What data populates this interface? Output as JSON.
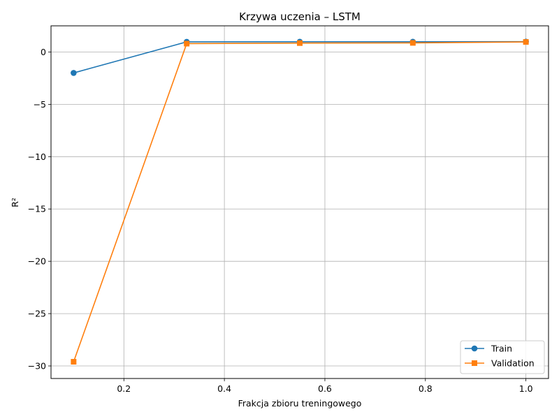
{
  "chart_data": {
    "type": "line",
    "title": "Krzywa uczenia – LSTM",
    "xlabel": "Frakcja zbioru treningowego",
    "ylabel": "R²",
    "x": [
      0.1,
      0.325,
      0.55,
      0.775,
      1.0
    ],
    "xlim": [
      0.055,
      1.045
    ],
    "ylim": [
      -31.2,
      2.5
    ],
    "xticks": [
      0.2,
      0.4,
      0.6,
      0.8,
      1.0
    ],
    "xtick_labels": [
      "0.2",
      "0.4",
      "0.6",
      "0.8",
      "1.0"
    ],
    "yticks": [
      0,
      -5,
      -10,
      -15,
      -20,
      -25,
      -30
    ],
    "ytick_labels": [
      "0",
      "−5",
      "−10",
      "−15",
      "−20",
      "−25",
      "−30"
    ],
    "grid": true,
    "legend_position": "lower-right",
    "series": [
      {
        "name": "Train",
        "marker": "circle",
        "color": "#1f77b4",
        "values": [
          -2.0,
          0.97,
          0.98,
          0.98,
          0.99
        ]
      },
      {
        "name": "Validation",
        "marker": "square",
        "color": "#ff7f0e",
        "values": [
          -29.6,
          0.8,
          0.85,
          0.87,
          0.96
        ]
      }
    ]
  }
}
